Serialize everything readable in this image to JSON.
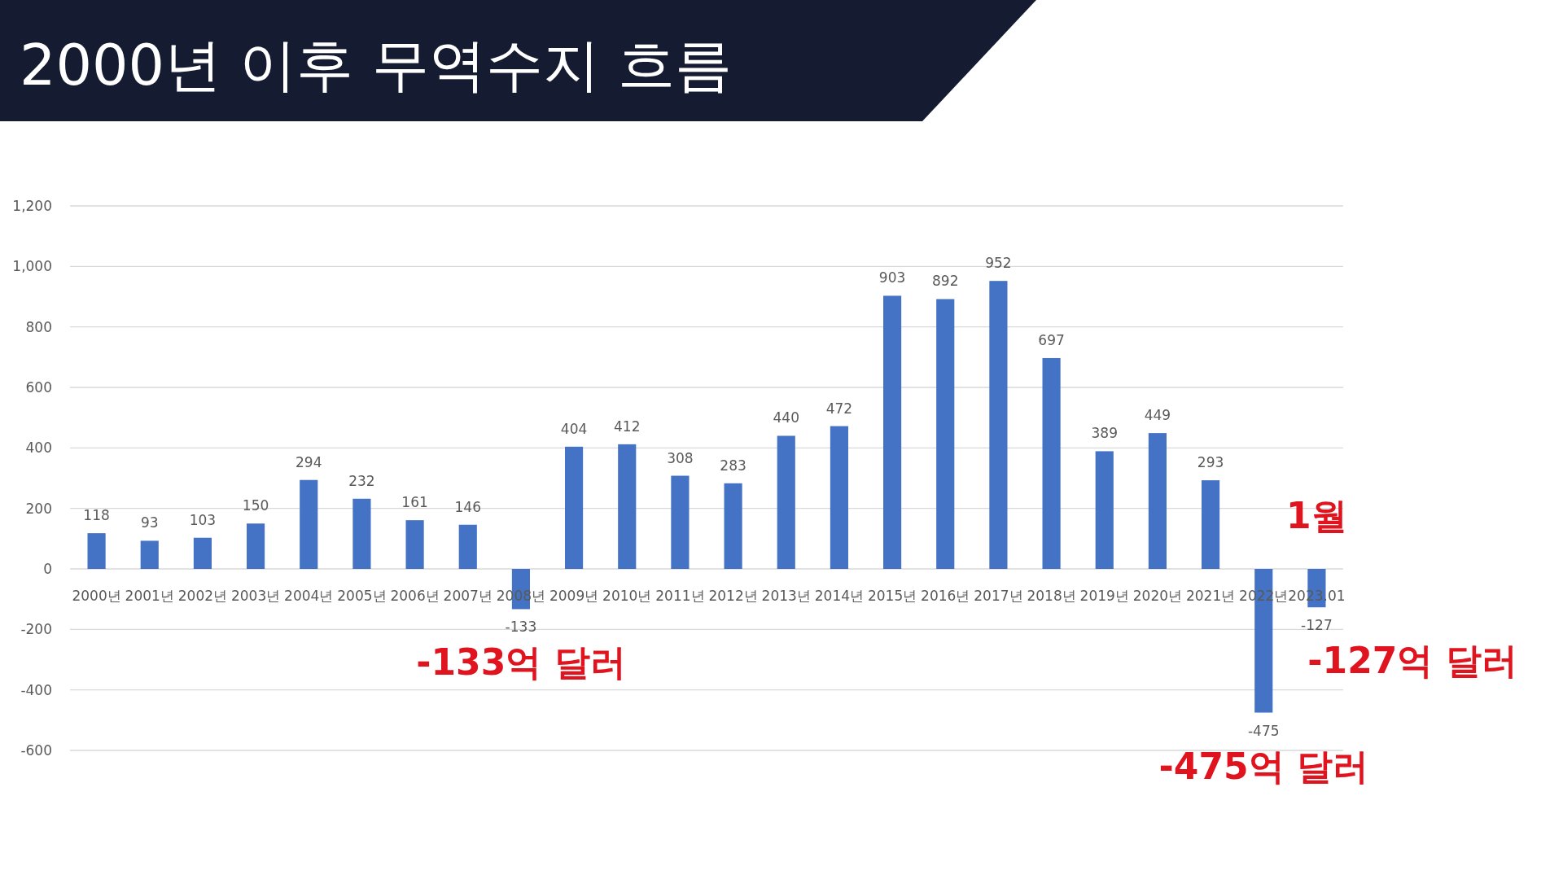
{
  "chart_data": {
    "type": "bar",
    "title": "2000년 이후 무역수지 흐름",
    "categories": [
      "2000년",
      "2001년",
      "2002년",
      "2003년",
      "2004년",
      "2005년",
      "2006년",
      "2007년",
      "2008년",
      "2009년",
      "2010년",
      "2011년",
      "2012년",
      "2013년",
      "2014년",
      "2015년",
      "2016년",
      "2017년",
      "2018년",
      "2019년",
      "2020년",
      "2021년",
      "2022년",
      "2023.01"
    ],
    "values": [
      118,
      93,
      103,
      150,
      294,
      232,
      161,
      146,
      -133,
      404,
      412,
      308,
      283,
      440,
      472,
      903,
      892,
      952,
      697,
      389,
      449,
      293,
      -475,
      -127
    ],
    "color": "#4472c4",
    "ylim": [
      -600,
      1200
    ],
    "yticks": [
      -600,
      -400,
      -200,
      0,
      200,
      400,
      600,
      800,
      {
        "value": 1000,
        "label": "1,000"
      },
      {
        "value": 1200,
        "label": "1,200"
      }
    ],
    "grid": "y",
    "data_labels": true,
    "annotations": [
      {
        "text": "-133억 달러",
        "x": "2008년",
        "y": -133
      },
      {
        "text": "-475억 달러",
        "x": "2022년",
        "y": -475
      },
      {
        "text": "1월",
        "x": "2023.01",
        "y": 0
      },
      {
        "text": "-127억 달러",
        "x": "2023.01",
        "y": -127
      }
    ]
  }
}
